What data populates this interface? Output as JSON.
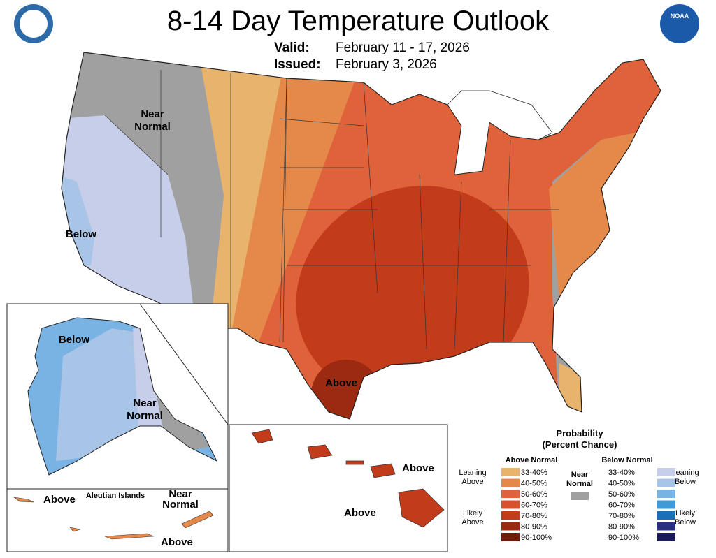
{
  "header": {
    "title": "8-14 Day Temperature Outlook",
    "valid_label": "Valid:",
    "valid": "February 11 - 17, 2026",
    "issued_label": "Issued:",
    "issued": "February 3, 2026",
    "logo_noaa": "NOAA"
  },
  "map_labels": {
    "conus_near_normal": [
      "Near",
      "Normal"
    ],
    "conus_below": [
      "Below"
    ],
    "conus_above": [
      "Above"
    ],
    "alaska_below": [
      "Below"
    ],
    "alaska_near_normal": [
      "Near",
      "Normal"
    ],
    "aleutian_title": "Aleutian Islands",
    "aleutian_above_west": "Above",
    "aleutian_near_normal": [
      "Near",
      "Normal"
    ],
    "aleutian_above_east": "Above",
    "hawaii_above_north": "Above",
    "hawaii_above_south": "Above"
  },
  "legend": {
    "title": [
      "Probability",
      "(Percent Chance)"
    ],
    "above_header": "Above Normal",
    "below_header": "Below Normal",
    "near": [
      "Near",
      "Normal"
    ],
    "near_color": "#a0a0a0",
    "leaning_above": [
      "Leaning",
      "Above"
    ],
    "likely_above": [
      "Likely",
      "Above"
    ],
    "leaning_below": [
      "Leaning",
      "Below"
    ],
    "likely_below": [
      "Likely",
      "Below"
    ],
    "above": [
      {
        "label": "33-40%",
        "color": "#e8b36c"
      },
      {
        "label": "40-50%",
        "color": "#e5894a"
      },
      {
        "label": "50-60%",
        "color": "#e0623a"
      },
      {
        "label": "60-70%",
        "color": "#d8502c"
      },
      {
        "label": "70-80%",
        "color": "#c23b1b"
      },
      {
        "label": "80-90%",
        "color": "#9c2a10"
      },
      {
        "label": "90-100%",
        "color": "#6c1c08"
      }
    ],
    "below": [
      {
        "label": "33-40%",
        "color": "#c6cee9"
      },
      {
        "label": "40-50%",
        "color": "#a8c4e6"
      },
      {
        "label": "50-60%",
        "color": "#79b3e3"
      },
      {
        "label": "60-70%",
        "color": "#3f9ad8"
      },
      {
        "label": "70-80%",
        "color": "#1c6fb4"
      },
      {
        "label": "80-90%",
        "color": "#2a2f80"
      },
      {
        "label": "90-100%",
        "color": "#1a1a58"
      }
    ]
  }
}
